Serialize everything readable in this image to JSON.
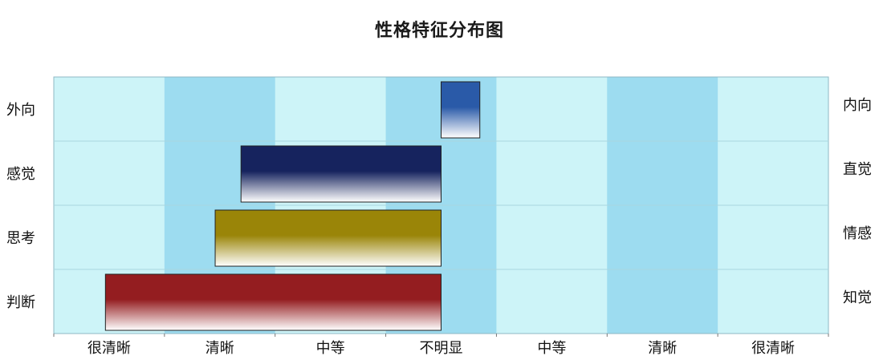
{
  "chart_data": {
    "type": "bar",
    "title": "性格特征分布图",
    "orientation": "horizontal-diverging",
    "categories_left": [
      "外向",
      "感觉",
      "思考",
      "判断"
    ],
    "categories_right": [
      "内向",
      "直觉",
      "情感",
      "知觉"
    ],
    "x_tick_labels": [
      "很清晰",
      "清晰",
      "中等",
      "不明显",
      "中等",
      "清晰",
      "很清晰"
    ],
    "xlim": [
      -60,
      60
    ],
    "series": [
      {
        "values": [
          6,
          -31,
          -35,
          -52
        ],
        "colors": [
          "#2a5aa8",
          "#16235e",
          "#9a8508",
          "#941d20"
        ]
      }
    ],
    "band_colors": {
      "light": "#cdf4f8",
      "dark": "#9ddcf0"
    },
    "grid": false,
    "legend": "none"
  }
}
